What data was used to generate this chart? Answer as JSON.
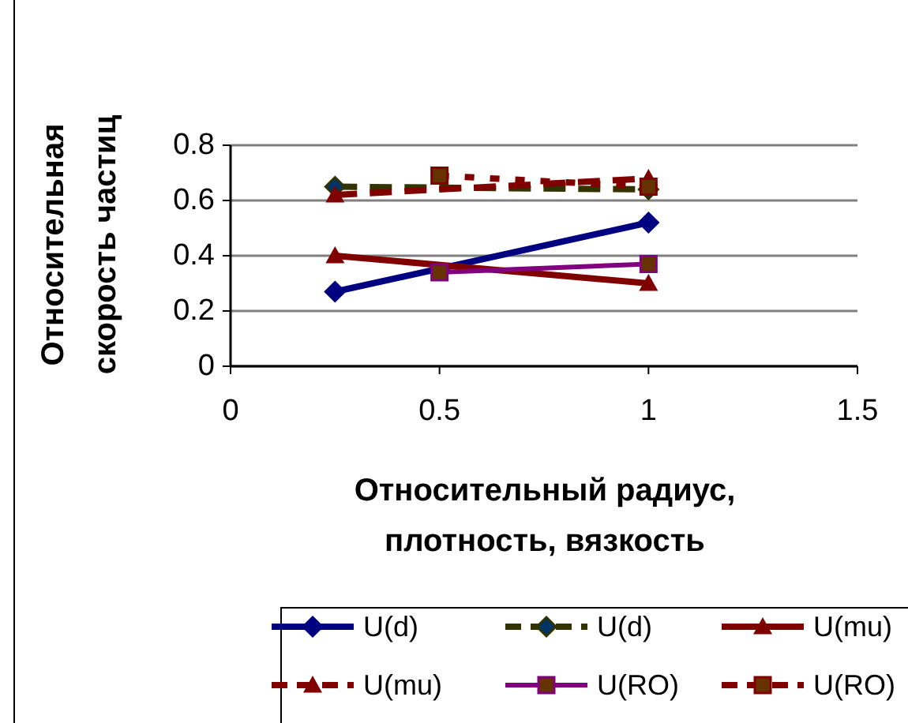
{
  "chart_data": {
    "type": "line",
    "xlabel": "Относительный радиус,\nплотность, вязкость",
    "ylabel": "Относительная\nскорость частиц",
    "xlim": [
      0,
      1.5
    ],
    "xticks": [
      0,
      0.5,
      1,
      1.5
    ],
    "ylim": [
      0,
      0.8
    ],
    "yticks": [
      0,
      0.2,
      0.4,
      0.6,
      0.8
    ],
    "grid": "y",
    "legend": "bottom",
    "series": [
      {
        "name": "U(d)",
        "color": "#000080",
        "marker": "diamond",
        "line_style": "solid",
        "x": [
          0.25,
          1
        ],
        "values": [
          0.27,
          0.52
        ]
      },
      {
        "name": "U(d)",
        "color": "#333300",
        "marker": "diamond",
        "line_style": "dashed",
        "x": [
          0.25,
          1
        ],
        "values": [
          0.65,
          0.64
        ]
      },
      {
        "name": "U(mu)",
        "color": "#800000",
        "marker": "triangle",
        "line_style": "solid",
        "x": [
          0.25,
          1
        ],
        "values": [
          0.4,
          0.3
        ]
      },
      {
        "name": "U(mu)",
        "color": "#800000",
        "marker": "triangle",
        "line_style": "dashed",
        "x": [
          0.25,
          1
        ],
        "values": [
          0.62,
          0.68
        ]
      },
      {
        "name": "U(RO)",
        "color": "#800080",
        "marker": "square",
        "line_style": "solid",
        "x": [
          0.5,
          1
        ],
        "values": [
          0.34,
          0.37
        ]
      },
      {
        "name": "U(RO)",
        "color": "#800000",
        "marker": "square",
        "line_style": "dotted",
        "x": [
          0.5,
          1
        ],
        "values": [
          0.69,
          0.65
        ]
      }
    ]
  }
}
